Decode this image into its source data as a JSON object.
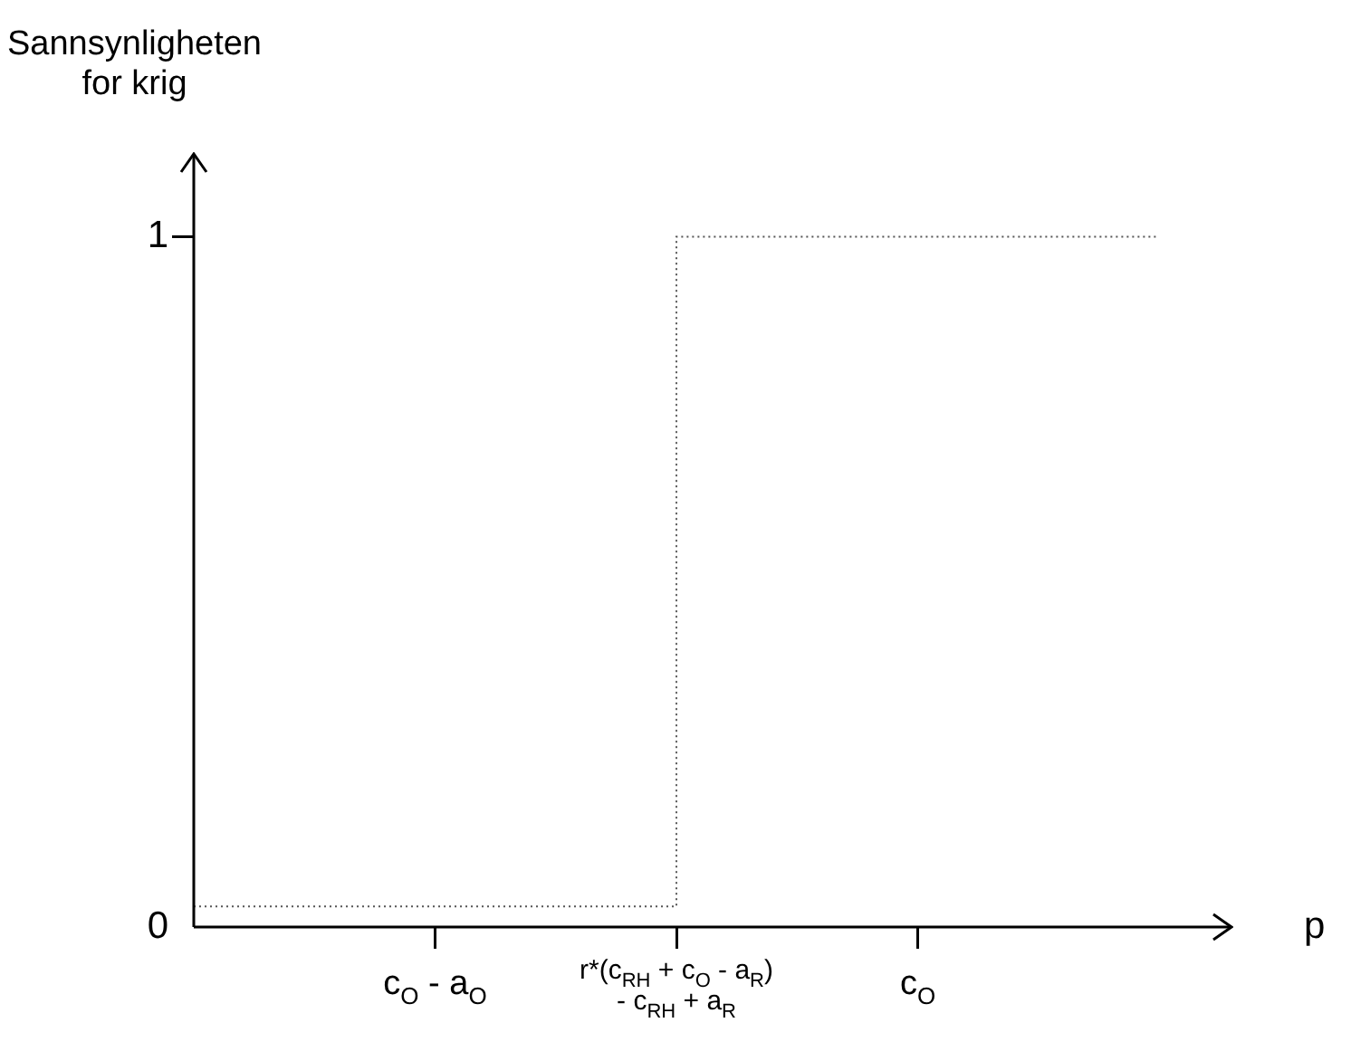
{
  "chart_data": {
    "type": "step",
    "xlabel": "p",
    "ylabel": "Sannsynligheten\nfor krig",
    "categories": [
      null,
      "c$_{O}$ - a$_{O}$",
      "r*(c$_{RH}$ + c$_{O}$ - a$_{R}$)\n- c$_{RH}$ + a$_{R}$",
      "c$_{O}$",
      null
    ],
    "series": [
      {
        "color": "#555555",
        "values": [
          0.03,
          0.03,
          1,
          1,
          1
        ]
      }
    ],
    "line_style": "dotted",
    "marker": "none",
    "ylim": [
      0,
      1.12
    ],
    "yticks": [
      0,
      1
    ]
  }
}
